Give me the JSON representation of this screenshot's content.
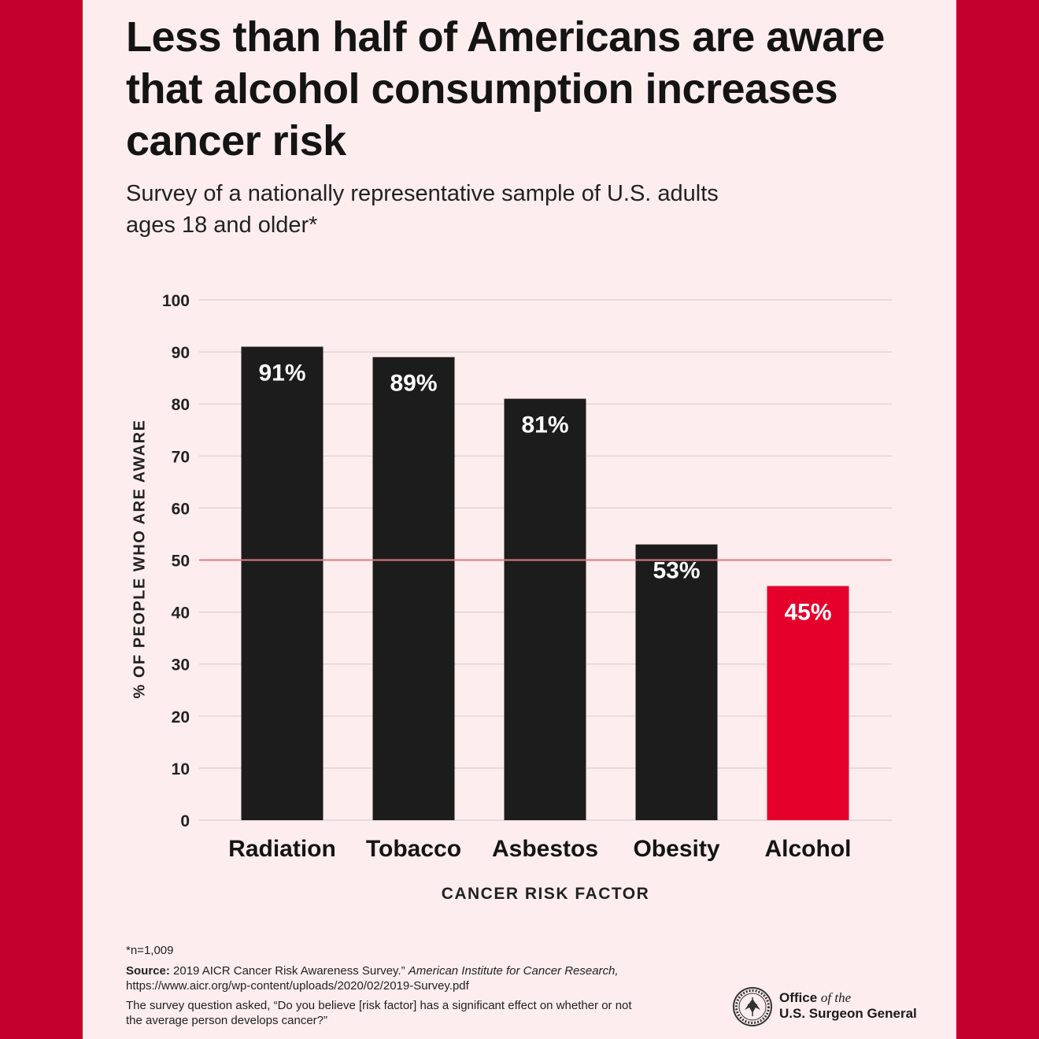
{
  "title": "Less than half of Americans are aware that alcohol consumption increases cancer risk",
  "subtitle": "Survey of a nationally representative sample of U.S. adults ages 18 and older*",
  "chart_data": {
    "type": "bar",
    "categories": [
      "Radiation",
      "Tobacco",
      "Asbestos",
      "Obesity",
      "Alcohol"
    ],
    "values": [
      91,
      89,
      81,
      53,
      45
    ],
    "data_labels": [
      "91%",
      "89%",
      "81%",
      "53%",
      "45%"
    ],
    "xlabel": "CANCER RISK FACTOR",
    "ylabel": "% OF PEOPLE WHO ARE AWARE",
    "ylim": [
      0,
      100
    ],
    "yticks": [
      0,
      10,
      20,
      30,
      40,
      50,
      60,
      70,
      80,
      90,
      100
    ],
    "reference_line": 50,
    "grid": true,
    "bar_colors": [
      "#1c1c1c",
      "#1c1c1c",
      "#1c1c1c",
      "#1c1c1c",
      "#e4002b"
    ]
  },
  "colors": {
    "background": "#c4002f",
    "panel": "#fdedef",
    "bar": "#1c1c1c",
    "highlight_bar": "#e4002b",
    "reference_line": "#e07c80",
    "gridline": "#d9cfd1"
  },
  "footer": {
    "footnote": "*n=1,009",
    "source_label": "Source:",
    "source_text": " 2019 AICR Cancer Risk Awareness Survey.” ",
    "source_publisher": "American Institute for Cancer Research,",
    "source_url": " https://www.aicr.org/wp-content/uploads/2020/02/2019-Survey.pdf",
    "question": "The survey question asked, “Do you believe [risk factor] has a significant effect on whether or not the average person develops cancer?”",
    "logo_icon": "surgeon-general-seal-icon",
    "office_line1": "Office",
    "office_line1_italic": "of the",
    "office_line2": "U.S. Surgeon General"
  }
}
